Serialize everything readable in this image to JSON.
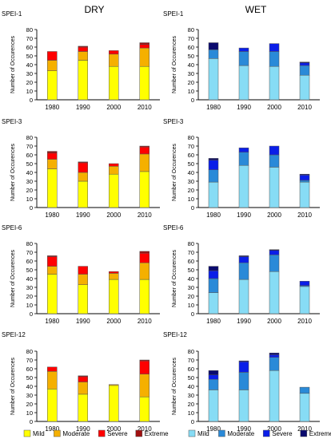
{
  "column_titles": [
    "DRY",
    "WET"
  ],
  "legends": {
    "dry": [
      "Mild",
      "Moderate",
      "Severe",
      "Extreme"
    ],
    "wet": [
      "Mild",
      "Moderate",
      "Severe",
      "Extreme"
    ]
  },
  "colors": {
    "dry": [
      "#FFFF00",
      "#F5B000",
      "#FF0000",
      "#A01010"
    ],
    "wet": [
      "#87DCF5",
      "#2A8AD8",
      "#0A1EE8",
      "#0A0A6E"
    ]
  },
  "chart_data": [
    {
      "type": "bar",
      "stacked": true,
      "column": "DRY",
      "title": "SPEI-1",
      "ylabel": "Number of Occurences",
      "categories": [
        "1980",
        "1990",
        "2000",
        "2010"
      ],
      "ylim": [
        0,
        80
      ],
      "yticks": [
        0,
        10,
        20,
        30,
        40,
        50,
        60,
        70,
        80
      ],
      "series": [
        {
          "name": "Mild",
          "values": [
            33,
            45,
            38,
            38
          ]
        },
        {
          "name": "Moderate",
          "values": [
            12,
            10,
            14,
            21
          ]
        },
        {
          "name": "Severe",
          "values": [
            10,
            5,
            4,
            4
          ]
        },
        {
          "name": "Extreme",
          "values": [
            0,
            1,
            0,
            2
          ]
        }
      ]
    },
    {
      "type": "bar",
      "stacked": true,
      "column": "WET",
      "title": "SPEI-1",
      "ylabel": "Number of Occurences",
      "categories": [
        "1980",
        "1990",
        "2000",
        "2010"
      ],
      "ylim": [
        0,
        80
      ],
      "yticks": [
        0,
        10,
        20,
        30,
        40,
        50,
        60,
        70,
        80
      ],
      "series": [
        {
          "name": "Mild",
          "values": [
            47,
            39,
            38,
            28
          ]
        },
        {
          "name": "Moderate",
          "values": [
            10,
            16,
            17,
            11
          ]
        },
        {
          "name": "Severe",
          "values": [
            0,
            4,
            9,
            3
          ]
        },
        {
          "name": "Extreme",
          "values": [
            8,
            0,
            0,
            1
          ]
        }
      ]
    },
    {
      "type": "bar",
      "stacked": true,
      "column": "DRY",
      "title": "SPEI-3",
      "ylabel": "Number of Occurences",
      "categories": [
        "1980",
        "1990",
        "2000",
        "2010"
      ],
      "ylim": [
        0,
        80
      ],
      "yticks": [
        0,
        10,
        20,
        30,
        40,
        50,
        60,
        70,
        80
      ],
      "series": [
        {
          "name": "Mild",
          "values": [
            44,
            30,
            38,
            41
          ]
        },
        {
          "name": "Moderate",
          "values": [
            11,
            10,
            9,
            20
          ]
        },
        {
          "name": "Severe",
          "values": [
            7,
            11,
            3,
            8
          ]
        },
        {
          "name": "Extreme",
          "values": [
            2,
            1,
            0,
            1
          ]
        }
      ]
    },
    {
      "type": "bar",
      "stacked": true,
      "column": "WET",
      "title": "SPEI-3",
      "ylabel": "Number of Occurences",
      "categories": [
        "1980",
        "1990",
        "2000",
        "2010"
      ],
      "ylim": [
        0,
        80
      ],
      "yticks": [
        0,
        10,
        20,
        30,
        40,
        50,
        60,
        70,
        80
      ],
      "series": [
        {
          "name": "Mild",
          "values": [
            29,
            48,
            46,
            29
          ]
        },
        {
          "name": "Moderate",
          "values": [
            14,
            15,
            14,
            2
          ]
        },
        {
          "name": "Severe",
          "values": [
            11,
            5,
            10,
            6
          ]
        },
        {
          "name": "Extreme",
          "values": [
            2,
            0,
            0,
            1
          ]
        }
      ]
    },
    {
      "type": "bar",
      "stacked": true,
      "column": "DRY",
      "title": "SPEI-6",
      "ylabel": "Number of Occurences",
      "categories": [
        "1980",
        "1990",
        "2000",
        "2010"
      ],
      "ylim": [
        0,
        80
      ],
      "yticks": [
        0,
        10,
        20,
        30,
        40,
        50,
        60,
        70,
        80
      ],
      "series": [
        {
          "name": "Mild",
          "values": [
            45,
            33,
            39,
            39
          ]
        },
        {
          "name": "Moderate",
          "values": [
            9,
            12,
            7,
            19
          ]
        },
        {
          "name": "Severe",
          "values": [
            11,
            9,
            2,
            11
          ]
        },
        {
          "name": "Extreme",
          "values": [
            1,
            0,
            0,
            2
          ]
        }
      ]
    },
    {
      "type": "bar",
      "stacked": true,
      "column": "WET",
      "title": "SPEI-6",
      "ylabel": "Number of Occurences",
      "categories": [
        "1980",
        "1990",
        "2000",
        "2010"
      ],
      "ylim": [
        0,
        80
      ],
      "yticks": [
        0,
        10,
        20,
        30,
        40,
        50,
        60,
        70,
        80
      ],
      "series": [
        {
          "name": "Mild",
          "values": [
            24,
            39,
            48,
            31
          ]
        },
        {
          "name": "Moderate",
          "values": [
            16,
            19,
            19,
            1
          ]
        },
        {
          "name": "Severe",
          "values": [
            9,
            7,
            5,
            5
          ]
        },
        {
          "name": "Extreme",
          "values": [
            5,
            1,
            1,
            0
          ]
        }
      ]
    },
    {
      "type": "bar",
      "stacked": true,
      "column": "DRY",
      "title": "SPEI-12",
      "ylabel": "Number of Occurences",
      "categories": [
        "1980",
        "1990",
        "2000",
        "2010"
      ],
      "ylim": [
        0,
        80
      ],
      "yticks": [
        0,
        10,
        20,
        30,
        40,
        50,
        60,
        70,
        80
      ],
      "series": [
        {
          "name": "Mild",
          "values": [
            37,
            31,
            41,
            28
          ]
        },
        {
          "name": "Moderate",
          "values": [
            20,
            14,
            1,
            26
          ]
        },
        {
          "name": "Severe",
          "values": [
            5,
            6,
            0,
            15
          ]
        },
        {
          "name": "Extreme",
          "values": [
            0,
            1,
            0,
            1
          ]
        }
      ]
    },
    {
      "type": "bar",
      "stacked": true,
      "column": "WET",
      "title": "SPEI-12",
      "ylabel": "Number of Occurences",
      "categories": [
        "1980",
        "1990",
        "2000",
        "2010"
      ],
      "ylim": [
        0,
        80
      ],
      "yticks": [
        0,
        10,
        20,
        30,
        40,
        50,
        60,
        70,
        80
      ],
      "series": [
        {
          "name": "Mild",
          "values": [
            36,
            36,
            58,
            32
          ]
        },
        {
          "name": "Moderate",
          "values": [
            12,
            20,
            15,
            7
          ]
        },
        {
          "name": "Severe",
          "values": [
            5,
            12,
            3,
            0
          ]
        },
        {
          "name": "Extreme",
          "values": [
            5,
            1,
            2,
            0
          ]
        }
      ]
    }
  ]
}
